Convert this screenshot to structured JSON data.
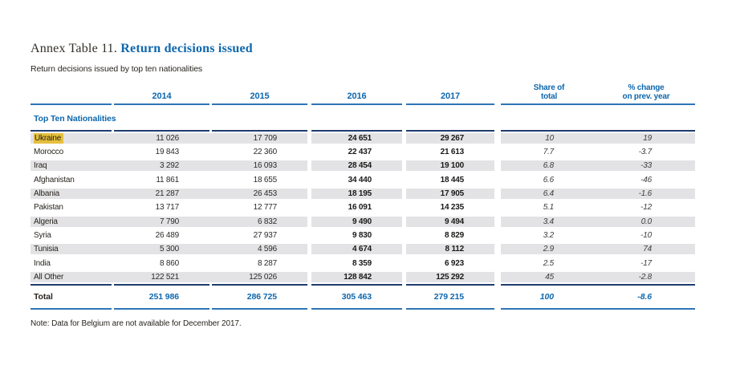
{
  "page": {
    "title_prefix": "Annex Table 11.",
    "title": "Return decisions issued",
    "subtitle": "Return decisions issued by top ten nationalities",
    "note": "Note: Data for Belgium are not available for December 2017."
  },
  "colors": {
    "accent_blue": "#0e67ad",
    "navy_line": "#1e3c6e",
    "light_blue_line": "#2f74b5",
    "row_shade": "#e3e3e5",
    "highlight_yellow": "#e5bf3e"
  },
  "table": {
    "section_label": "Top Ten Nationalities",
    "headers": {
      "y2014": "2014",
      "y2015": "2015",
      "y2016": "2016",
      "y2017": "2017",
      "share_l1": "Share of",
      "share_l2": "total",
      "change_l1": "% change",
      "change_l2": "on prev. year"
    },
    "rows": [
      {
        "name": "Ukraine",
        "highlight": true,
        "v2014": "11 026",
        "v2015": "17 709",
        "v2016": "24 651",
        "v2017": "29 267",
        "share": "10",
        "change": "19"
      },
      {
        "name": "Morocco",
        "highlight": false,
        "v2014": "19 843",
        "v2015": "22 360",
        "v2016": "22 437",
        "v2017": "21 613",
        "share": "7.7",
        "change": "-3.7"
      },
      {
        "name": "Iraq",
        "highlight": false,
        "v2014": "3 292",
        "v2015": "16 093",
        "v2016": "28 454",
        "v2017": "19 100",
        "share": "6.8",
        "change": "-33"
      },
      {
        "name": "Afghanistan",
        "highlight": false,
        "v2014": "11 861",
        "v2015": "18 655",
        "v2016": "34 440",
        "v2017": "18 445",
        "share": "6.6",
        "change": "-46"
      },
      {
        "name": "Albania",
        "highlight": false,
        "v2014": "21 287",
        "v2015": "26 453",
        "v2016": "18 195",
        "v2017": "17 905",
        "share": "6.4",
        "change": "-1.6"
      },
      {
        "name": "Pakistan",
        "highlight": false,
        "v2014": "13 717",
        "v2015": "12 777",
        "v2016": "16 091",
        "v2017": "14 235",
        "share": "5.1",
        "change": "-12"
      },
      {
        "name": "Algeria",
        "highlight": false,
        "v2014": "7 790",
        "v2015": "6 832",
        "v2016": "9 490",
        "v2017": "9 494",
        "share": "3.4",
        "change": "0.0"
      },
      {
        "name": "Syria",
        "highlight": false,
        "v2014": "26 489",
        "v2015": "27 937",
        "v2016": "9 830",
        "v2017": "8 829",
        "share": "3.2",
        "change": "-10"
      },
      {
        "name": "Tunisia",
        "highlight": false,
        "v2014": "5 300",
        "v2015": "4 596",
        "v2016": "4 674",
        "v2017": "8 112",
        "share": "2.9",
        "change": "74"
      },
      {
        "name": "India",
        "highlight": false,
        "v2014": "8 860",
        "v2015": "8 287",
        "v2016": "8 359",
        "v2017": "6 923",
        "share": "2.5",
        "change": "-17"
      },
      {
        "name": "All Other",
        "highlight": false,
        "v2014": "122 521",
        "v2015": "125 026",
        "v2016": "128 842",
        "v2017": "125 292",
        "share": "45",
        "change": "-2.8"
      }
    ],
    "total": {
      "label": "Total",
      "v2014": "251 986",
      "v2015": "286 725",
      "v2016": "305 463",
      "v2017": "279 215",
      "share": "100",
      "change": "-8.6"
    }
  }
}
